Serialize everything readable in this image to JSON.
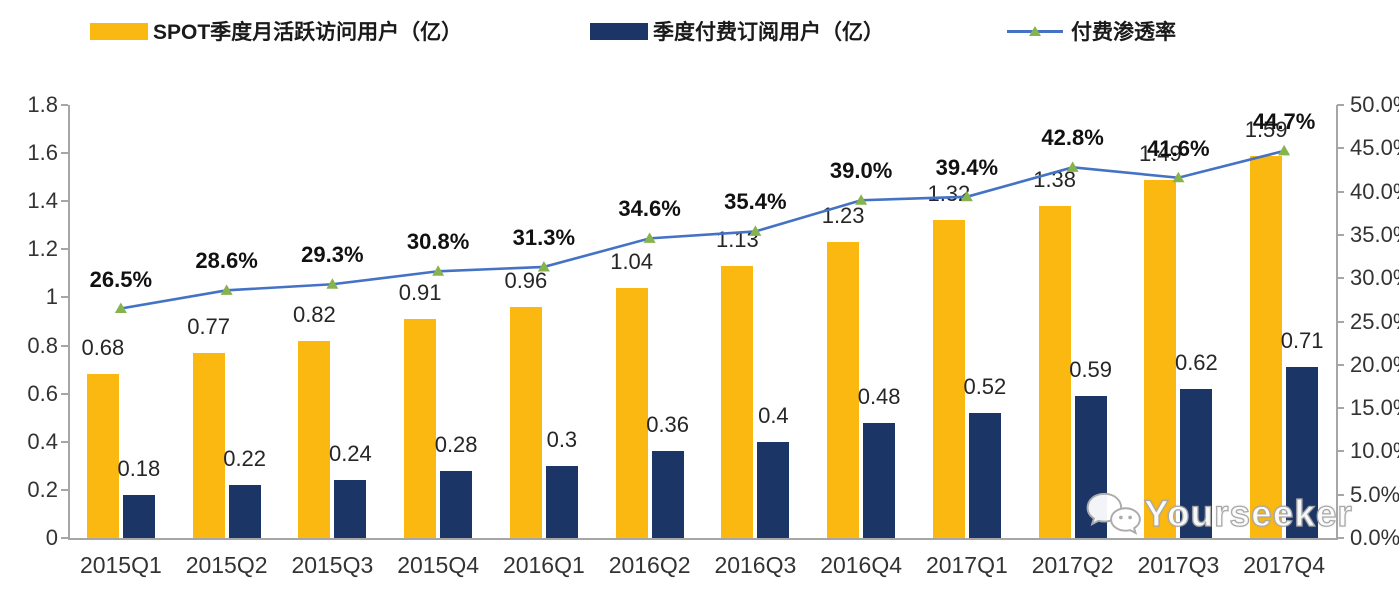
{
  "chart_data": {
    "type": "combo",
    "categories": [
      "2015Q1",
      "2015Q2",
      "2015Q3",
      "2015Q4",
      "2016Q1",
      "2016Q2",
      "2016Q3",
      "2016Q4",
      "2017Q1",
      "2017Q2",
      "2017Q3",
      "2017Q4"
    ],
    "series": [
      {
        "name": "SPOT季度月活跃访问用户（亿）",
        "type": "bar",
        "axis": "left",
        "color": "#FBB810",
        "values": [
          0.68,
          0.77,
          0.82,
          0.91,
          0.96,
          1.04,
          1.13,
          1.23,
          1.32,
          1.38,
          1.49,
          1.59
        ],
        "labels": [
          "0.68",
          "0.77",
          "0.82",
          "0.91",
          "0.96",
          "1.04",
          "1.13",
          "1.23",
          "1.32",
          "1.38",
          "1.49",
          "1.59"
        ]
      },
      {
        "name": "季度付费订阅用户（亿）",
        "type": "bar",
        "axis": "left",
        "color": "#1B3566",
        "values": [
          0.18,
          0.22,
          0.24,
          0.28,
          0.3,
          0.36,
          0.4,
          0.48,
          0.52,
          0.59,
          0.62,
          0.71
        ],
        "labels": [
          "0.18",
          "0.22",
          "0.24",
          "0.28",
          "0.3",
          "0.36",
          "0.4",
          "0.48",
          "0.52",
          "0.59",
          "0.62",
          "0.71"
        ]
      },
      {
        "name": "付费渗透率",
        "type": "line",
        "axis": "right",
        "color": "#4472C4",
        "marker": "triangle",
        "marker_color": "#87B34F",
        "values": [
          26.5,
          28.6,
          29.3,
          30.8,
          31.3,
          34.6,
          35.4,
          39.0,
          39.4,
          42.8,
          41.6,
          44.7
        ],
        "labels": [
          "26.5%",
          "28.6%",
          "29.3%",
          "30.8%",
          "31.3%",
          "34.6%",
          "35.4%",
          "39.0%",
          "39.4%",
          "42.8%",
          "41.6%",
          "44.7%"
        ]
      }
    ],
    "left_axis": {
      "min": 0,
      "max": 1.8,
      "tick_labels": [
        "0",
        "0.2",
        "0.4",
        "0.6",
        "0.8",
        "1",
        "1.2",
        "1.4",
        "1.6",
        "1.8"
      ]
    },
    "right_axis": {
      "min": 0,
      "max": 50,
      "tick_labels": [
        "0.0%",
        "5.0%",
        "10.0%",
        "15.0%",
        "20.0%",
        "25.0%",
        "30.0%",
        "35.0%",
        "40.0%",
        "45.0%",
        "50.0%"
      ]
    },
    "grid": false,
    "legend_position": "top"
  },
  "watermark": {
    "text": "Yourseeker",
    "icon": "wechat-icon"
  }
}
